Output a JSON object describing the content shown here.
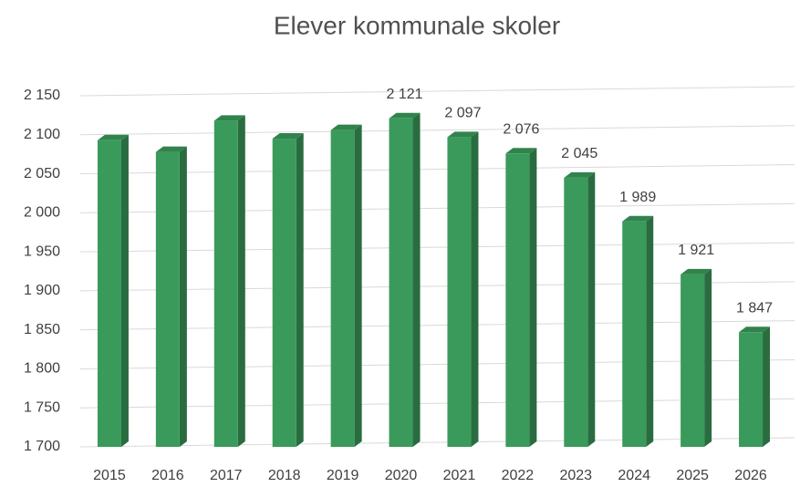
{
  "chart_data": {
    "type": "bar",
    "title": "Elever kommunale skoler",
    "categories": [
      "2015",
      "2016",
      "2017",
      "2018",
      "2019",
      "2020",
      "2021",
      "2022",
      "2023",
      "2024",
      "2025",
      "2026"
    ],
    "values": [
      2093,
      2078,
      2118,
      2095,
      2106,
      2121,
      2097,
      2076,
      2045,
      1989,
      1921,
      1847
    ],
    "value_labels": [
      null,
      null,
      null,
      null,
      null,
      "2 121",
      "2 097",
      "2 076",
      "2 045",
      "1 989",
      "1 921",
      "1 847"
    ],
    "color": "#3a9a5b",
    "ylim": [
      1700,
      2150
    ],
    "yticks": [
      {
        "value": 1700,
        "label": "1 700"
      },
      {
        "value": 1750,
        "label": "1 750"
      },
      {
        "value": 1800,
        "label": "1 800"
      },
      {
        "value": 1850,
        "label": "1 850"
      },
      {
        "value": 1900,
        "label": "1 900"
      },
      {
        "value": 1950,
        "label": "1 950"
      },
      {
        "value": 2000,
        "label": "2 000"
      },
      {
        "value": 2050,
        "label": "2 050"
      },
      {
        "value": 2100,
        "label": "2 100"
      },
      {
        "value": 2150,
        "label": "2 150"
      }
    ],
    "grid": true
  }
}
